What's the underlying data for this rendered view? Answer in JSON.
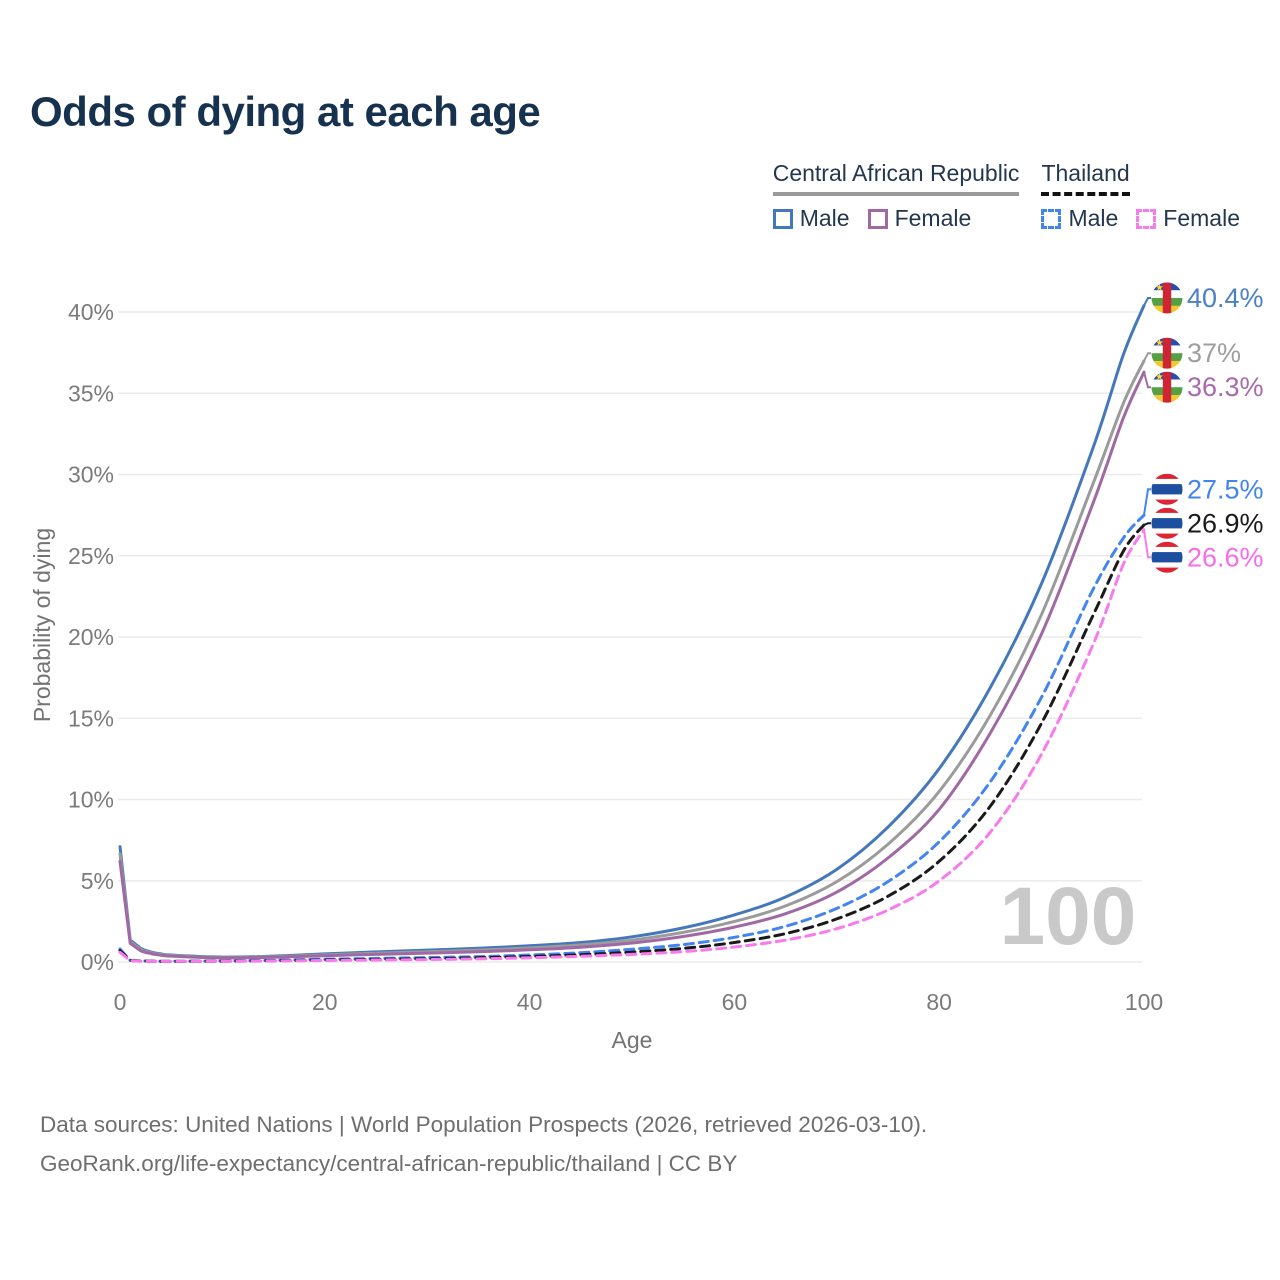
{
  "title": "Odds of dying at each age",
  "legend": {
    "groups": [
      {
        "name": "Central African Republic",
        "line_style": "solid",
        "underline_color": "#9a9a9a",
        "items": [
          {
            "label": "Male",
            "color": "#4478bb",
            "dashed": false
          },
          {
            "label": "Female",
            "color": "#a069a4",
            "dashed": false
          }
        ]
      },
      {
        "name": "Thailand",
        "line_style": "dashed",
        "underline_color": "#111111",
        "items": [
          {
            "label": "Male",
            "color": "#4285f2",
            "dashed": true
          },
          {
            "label": "Female",
            "color": "#f87bee",
            "dashed": true
          }
        ]
      }
    ]
  },
  "chart_data": {
    "type": "line",
    "title": "Odds of dying at each age",
    "xlabel": "Age",
    "ylabel": "Probability of dying",
    "xlim": [
      0,
      100
    ],
    "ylim": [
      0,
      40.4
    ],
    "grid": true,
    "watermark": "100",
    "x_ticks": [
      {
        "value": 0,
        "label": "0"
      },
      {
        "value": 20,
        "label": "20"
      },
      {
        "value": 40,
        "label": "40"
      },
      {
        "value": 60,
        "label": "60"
      },
      {
        "value": 80,
        "label": "80"
      },
      {
        "value": 100,
        "label": "100"
      }
    ],
    "y_ticks": [
      {
        "value": 0,
        "label": "0%"
      },
      {
        "value": 5,
        "label": "5%"
      },
      {
        "value": 10,
        "label": "10%"
      },
      {
        "value": 15,
        "label": "15%"
      },
      {
        "value": 20,
        "label": "20%"
      },
      {
        "value": 25,
        "label": "25%"
      },
      {
        "value": 30,
        "label": "30%"
      },
      {
        "value": 35,
        "label": "35%"
      },
      {
        "value": 40,
        "label": "40%"
      }
    ],
    "series": [
      {
        "key": "car-male",
        "name": "Central African Republic — Male",
        "color": "#4478bb",
        "dash": "solid",
        "flag": "cf",
        "end_label": "40.4%",
        "label_color": "#4b80c4",
        "country": "Central African Republic",
        "points": [
          [
            0,
            7.1
          ],
          [
            1,
            1.35
          ],
          [
            2,
            0.85
          ],
          [
            3,
            0.62
          ],
          [
            4,
            0.5
          ],
          [
            5,
            0.43
          ],
          [
            10,
            0.3
          ],
          [
            15,
            0.36
          ],
          [
            20,
            0.5
          ],
          [
            25,
            0.62
          ],
          [
            30,
            0.73
          ],
          [
            35,
            0.85
          ],
          [
            40,
            1.0
          ],
          [
            45,
            1.2
          ],
          [
            50,
            1.55
          ],
          [
            55,
            2.1
          ],
          [
            60,
            2.9
          ],
          [
            65,
            4.0
          ],
          [
            70,
            5.7
          ],
          [
            75,
            8.3
          ],
          [
            80,
            11.9
          ],
          [
            85,
            16.9
          ],
          [
            90,
            23.3
          ],
          [
            95,
            31.6
          ],
          [
            98,
            37.4
          ],
          [
            100,
            40.4
          ]
        ]
      },
      {
        "key": "car-both",
        "name": "Central African Republic — Both sexes",
        "color": "#9b9b9b",
        "dash": "solid",
        "flag": "cf",
        "end_label": "37%",
        "label_color": "#9e9e9e",
        "country": "Central African Republic",
        "points": [
          [
            0,
            6.65
          ],
          [
            1,
            1.25
          ],
          [
            2,
            0.78
          ],
          [
            3,
            0.57
          ],
          [
            4,
            0.46
          ],
          [
            5,
            0.4
          ],
          [
            10,
            0.27
          ],
          [
            15,
            0.32
          ],
          [
            20,
            0.44
          ],
          [
            25,
            0.54
          ],
          [
            30,
            0.63
          ],
          [
            35,
            0.73
          ],
          [
            40,
            0.87
          ],
          [
            45,
            1.05
          ],
          [
            50,
            1.35
          ],
          [
            55,
            1.82
          ],
          [
            60,
            2.5
          ],
          [
            65,
            3.45
          ],
          [
            70,
            4.95
          ],
          [
            75,
            7.25
          ],
          [
            80,
            10.5
          ],
          [
            85,
            15.2
          ],
          [
            90,
            21.4
          ],
          [
            95,
            29.4
          ],
          [
            98,
            34.4
          ],
          [
            100,
            37.0
          ]
        ]
      },
      {
        "key": "car-female",
        "name": "Central African Republic — Female",
        "color": "#a069a4",
        "dash": "solid",
        "flag": "cf",
        "end_label": "36.3%",
        "label_color": "#a869ad",
        "country": "Central African Republic",
        "points": [
          [
            0,
            6.2
          ],
          [
            1,
            1.15
          ],
          [
            2,
            0.7
          ],
          [
            3,
            0.52
          ],
          [
            4,
            0.42
          ],
          [
            5,
            0.36
          ],
          [
            10,
            0.25
          ],
          [
            15,
            0.29
          ],
          [
            20,
            0.39
          ],
          [
            25,
            0.47
          ],
          [
            30,
            0.55
          ],
          [
            35,
            0.63
          ],
          [
            40,
            0.75
          ],
          [
            45,
            0.91
          ],
          [
            50,
            1.17
          ],
          [
            55,
            1.57
          ],
          [
            60,
            2.15
          ],
          [
            65,
            2.97
          ],
          [
            70,
            4.3
          ],
          [
            75,
            6.4
          ],
          [
            80,
            9.4
          ],
          [
            85,
            14.1
          ],
          [
            90,
            20.2
          ],
          [
            95,
            28.2
          ],
          [
            98,
            33.5
          ],
          [
            100,
            36.3
          ]
        ]
      },
      {
        "key": "tha-male",
        "name": "Thailand — Male",
        "color": "#4285f2",
        "dash": "dashed",
        "flag": "th",
        "end_label": "27.5%",
        "label_color": "#4285f2",
        "country": "Thailand",
        "points": [
          [
            0,
            0.8
          ],
          [
            1,
            0.1
          ],
          [
            2,
            0.07
          ],
          [
            3,
            0.06
          ],
          [
            4,
            0.05
          ],
          [
            5,
            0.05
          ],
          [
            10,
            0.06
          ],
          [
            15,
            0.11
          ],
          [
            20,
            0.17
          ],
          [
            25,
            0.22
          ],
          [
            30,
            0.27
          ],
          [
            35,
            0.33
          ],
          [
            40,
            0.43
          ],
          [
            45,
            0.57
          ],
          [
            50,
            0.79
          ],
          [
            55,
            1.07
          ],
          [
            60,
            1.52
          ],
          [
            65,
            2.2
          ],
          [
            70,
            3.3
          ],
          [
            75,
            4.95
          ],
          [
            80,
            7.4
          ],
          [
            85,
            11.1
          ],
          [
            90,
            16.3
          ],
          [
            95,
            22.9
          ],
          [
            98,
            26.1
          ],
          [
            100,
            27.5
          ]
        ]
      },
      {
        "key": "tha-both",
        "name": "Thailand — Both sexes",
        "color": "#1a1a1a",
        "dash": "dashed",
        "flag": "th",
        "end_label": "26.9%",
        "label_color": "#1a1a1a",
        "country": "Thailand",
        "points": [
          [
            0,
            0.7
          ],
          [
            1,
            0.09
          ],
          [
            2,
            0.06
          ],
          [
            3,
            0.05
          ],
          [
            4,
            0.04
          ],
          [
            5,
            0.04
          ],
          [
            10,
            0.05
          ],
          [
            15,
            0.08
          ],
          [
            20,
            0.12
          ],
          [
            25,
            0.16
          ],
          [
            30,
            0.2
          ],
          [
            35,
            0.26
          ],
          [
            40,
            0.34
          ],
          [
            45,
            0.45
          ],
          [
            50,
            0.61
          ],
          [
            55,
            0.84
          ],
          [
            60,
            1.2
          ],
          [
            65,
            1.75
          ],
          [
            70,
            2.65
          ],
          [
            75,
            4.05
          ],
          [
            80,
            6.2
          ],
          [
            85,
            9.6
          ],
          [
            90,
            14.7
          ],
          [
            95,
            21.3
          ],
          [
            98,
            25.3
          ],
          [
            100,
            26.9
          ]
        ]
      },
      {
        "key": "tha-female",
        "name": "Thailand — Female",
        "color": "#f87bee",
        "dash": "dashed",
        "flag": "th",
        "end_label": "26.6%",
        "label_color": "#f96ce8",
        "country": "Thailand",
        "points": [
          [
            0,
            0.6
          ],
          [
            1,
            0.08
          ],
          [
            2,
            0.05
          ],
          [
            3,
            0.045
          ],
          [
            4,
            0.04
          ],
          [
            5,
            0.035
          ],
          [
            10,
            0.045
          ],
          [
            15,
            0.065
          ],
          [
            20,
            0.09
          ],
          [
            25,
            0.12
          ],
          [
            30,
            0.15
          ],
          [
            35,
            0.19
          ],
          [
            40,
            0.26
          ],
          [
            45,
            0.35
          ],
          [
            50,
            0.47
          ],
          [
            55,
            0.64
          ],
          [
            60,
            0.92
          ],
          [
            65,
            1.35
          ],
          [
            70,
            2.05
          ],
          [
            75,
            3.2
          ],
          [
            80,
            5.0
          ],
          [
            85,
            8.0
          ],
          [
            90,
            12.8
          ],
          [
            95,
            19.5
          ],
          [
            98,
            24.5
          ],
          [
            100,
            26.6
          ]
        ]
      }
    ]
  },
  "footer": {
    "line1": "Data sources: United Nations | World Population Prospects (2026, retrieved 2026-03-10).",
    "line2": "GeoRank.org/life-expectancy/central-african-republic/thailand | CC BY"
  }
}
